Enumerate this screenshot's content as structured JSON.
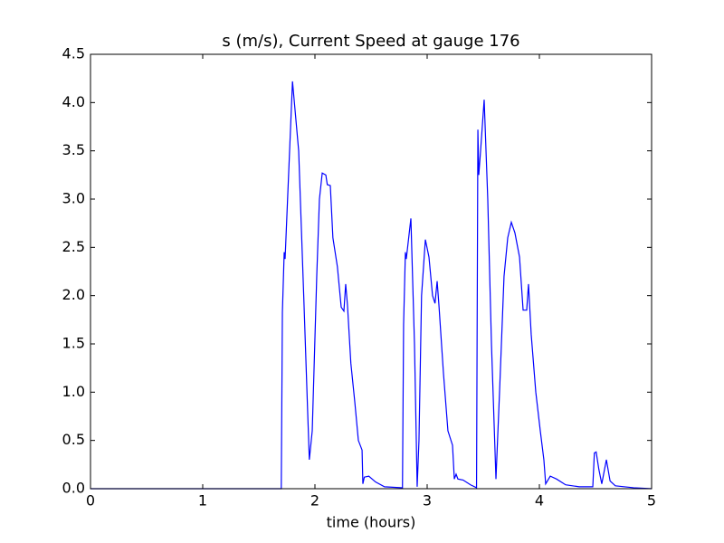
{
  "chart_data": {
    "type": "line",
    "title": "s (m/s), Current Speed at gauge 176",
    "xlabel": "time (hours)",
    "x": [
      0,
      1.7,
      1.71,
      1.726,
      1.734,
      1.8,
      1.855,
      1.9,
      1.935,
      1.95,
      1.976,
      2.016,
      2.04,
      2.065,
      2.097,
      2.11,
      2.137,
      2.16,
      2.2,
      2.234,
      2.258,
      2.274,
      2.29,
      2.32,
      2.355,
      2.387,
      2.42,
      2.427,
      2.44,
      2.48,
      2.54,
      2.62,
      2.78,
      2.79,
      2.806,
      2.814,
      2.855,
      2.887,
      2.911,
      2.927,
      2.95,
      2.984,
      3.016,
      3.048,
      3.07,
      3.089,
      3.105,
      3.145,
      3.185,
      3.226,
      3.242,
      3.258,
      3.274,
      3.32,
      3.387,
      3.44,
      3.452,
      3.46,
      3.476,
      3.508,
      3.54,
      3.573,
      3.613,
      3.645,
      3.685,
      3.718,
      3.75,
      3.782,
      3.823,
      3.855,
      3.887,
      3.903,
      3.927,
      3.968,
      4.008,
      4.04,
      4.056,
      4.097,
      4.153,
      4.234,
      4.355,
      4.476,
      4.49,
      4.506,
      4.53,
      4.556,
      4.597,
      4.63,
      4.677,
      4.84,
      5.0
    ],
    "series": [
      {
        "name": "s",
        "color": "#0000ff",
        "values": [
          0,
          0,
          1.83,
          2.45,
          2.38,
          4.22,
          3.5,
          2.0,
          0.8,
          0.3,
          0.6,
          2.2,
          3.0,
          3.27,
          3.25,
          3.15,
          3.14,
          2.6,
          2.3,
          1.88,
          1.84,
          2.12,
          1.9,
          1.3,
          0.9,
          0.5,
          0.4,
          0.05,
          0.12,
          0.13,
          0.07,
          0.02,
          0.01,
          1.7,
          2.45,
          2.38,
          2.8,
          1.5,
          0.02,
          0.5,
          2.0,
          2.58,
          2.4,
          2.0,
          1.92,
          2.15,
          1.9,
          1.2,
          0.6,
          0.45,
          0.1,
          0.15,
          0.1,
          0.09,
          0.04,
          0.01,
          3.72,
          3.25,
          3.5,
          4.03,
          3.0,
          1.5,
          0.1,
          1.0,
          2.2,
          2.6,
          2.76,
          2.65,
          2.4,
          1.85,
          1.85,
          2.12,
          1.6,
          1.0,
          0.6,
          0.3,
          0.05,
          0.13,
          0.1,
          0.04,
          0.02,
          0.02,
          0.37,
          0.38,
          0.2,
          0.05,
          0.3,
          0.08,
          0.03,
          0.01,
          0
        ]
      }
    ],
    "xlim": [
      0,
      5
    ],
    "xticks": [
      0,
      1,
      2,
      3,
      4,
      5
    ],
    "ylim": [
      0,
      4.5
    ],
    "yticks": [
      {
        "value": 0,
        "label": "0.0"
      },
      {
        "value": 0.5,
        "label": "0.5"
      },
      {
        "value": 1,
        "label": "1.0"
      },
      {
        "value": 1.5,
        "label": "1.5"
      },
      {
        "value": 2,
        "label": "2.0"
      },
      {
        "value": 2.5,
        "label": "2.5"
      },
      {
        "value": 3,
        "label": "3.0"
      },
      {
        "value": 3.5,
        "label": "3.5"
      },
      {
        "value": 4,
        "label": "4.0"
      },
      {
        "value": 4.5,
        "label": "4.5"
      }
    ],
    "grid": false
  }
}
